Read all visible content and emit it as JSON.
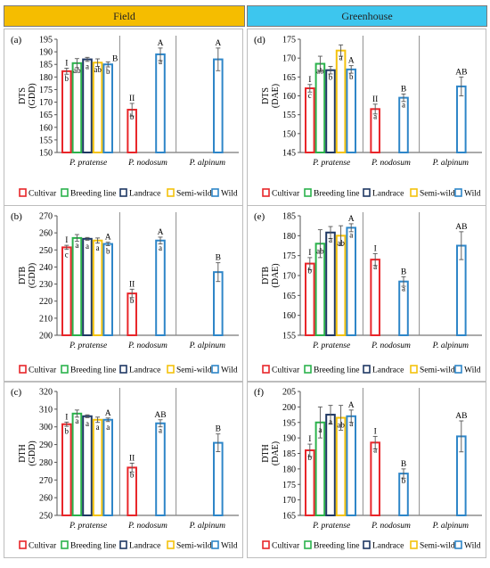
{
  "headers": {
    "field": "Field",
    "greenhouse": "Greenhouse"
  },
  "colors": {
    "Cultivar": "#e8262a",
    "Breeding line": "#2bb24c",
    "Landrace": "#1f3864",
    "Semi-wild": "#f4c20d",
    "Wild": "#2e86c8"
  },
  "legend": [
    "Cultivar",
    "Breeding line",
    "Landrace",
    "Semi-wild",
    "Wild"
  ],
  "species_labels": [
    "P. pratense",
    "P. nodosum",
    "P. alpinum"
  ],
  "chart_data": [
    {
      "id": "a",
      "panel_label": "(a)",
      "type": "bar",
      "ylabel": "DTS\n(GDD)",
      "ylim": [
        150,
        195
      ],
      "yticks": [
        150,
        155,
        160,
        165,
        170,
        175,
        180,
        185,
        190,
        195
      ],
      "groups": [
        {
          "species": "P. pratense",
          "group_letter": "I",
          "bars": [
            {
              "series": "Cultivar",
              "value": 182.3,
              "err": 1.2,
              "letter": "b"
            },
            {
              "series": "Breeding line",
              "value": 185.5,
              "err": 1.8,
              "letter": "ab"
            },
            {
              "series": "Landrace",
              "value": 187.0,
              "err": 0.8,
              "letter": "a"
            },
            {
              "series": "Semi-wild",
              "value": 185.7,
              "err": 1.5,
              "letter": "ab"
            },
            {
              "series": "Wild",
              "value": 185.0,
              "err": 1.0,
              "letter": "b"
            }
          ],
          "extra_letter": "B"
        },
        {
          "species": "P. nodosum",
          "group_letter": "II",
          "bars": [
            {
              "series": "Cultivar",
              "value": 167.0,
              "err": 2.5,
              "letter": "b"
            },
            {
              "series": "Wild",
              "value": 189.0,
              "err": 2.5,
              "letter": "a",
              "top_letter": "A"
            }
          ]
        },
        {
          "species": "P. alpinum",
          "bars": [
            {
              "series": "Wild",
              "value": 187.0,
              "err": 4.5,
              "top_letter": "A"
            }
          ]
        }
      ]
    },
    {
      "id": "d",
      "panel_label": "(d)",
      "type": "bar",
      "ylabel": "DTS\n(DAE)",
      "ylim": [
        145,
        175
      ],
      "yticks": [
        145,
        150,
        155,
        160,
        165,
        170,
        175
      ],
      "groups": [
        {
          "species": "P. pratense",
          "group_letter": "I",
          "bars": [
            {
              "series": "Cultivar",
              "value": 162.0,
              "err": 1.0,
              "letter": "c"
            },
            {
              "series": "Breeding line",
              "value": 168.5,
              "err": 2.0,
              "letter": "ab"
            },
            {
              "series": "Landrace",
              "value": 166.8,
              "err": 1.0,
              "letter": "b"
            },
            {
              "series": "Semi-wild",
              "value": 172.0,
              "err": 1.5,
              "letter": "a"
            },
            {
              "series": "Wild",
              "value": 167.0,
              "err": 1.0,
              "letter": "b",
              "top_letter": "A"
            }
          ]
        },
        {
          "species": "P. nodosum",
          "group_letter": "II",
          "bars": [
            {
              "series": "Cultivar",
              "value": 156.5,
              "err": 1.3,
              "letter": "a"
            },
            {
              "series": "Wild",
              "value": 159.5,
              "err": 1.0,
              "letter": "a",
              "top_letter": "B"
            }
          ]
        },
        {
          "species": "P. alpinum",
          "bars": [
            {
              "series": "Wild",
              "value": 162.5,
              "err": 2.5,
              "top_letter": "AB"
            }
          ]
        }
      ]
    },
    {
      "id": "b",
      "panel_label": "(b)",
      "type": "bar",
      "ylabel": "DTB\n(GDD)",
      "ylim": [
        200,
        270
      ],
      "yticks": [
        200,
        210,
        220,
        230,
        240,
        250,
        260,
        270
      ],
      "groups": [
        {
          "species": "P. pratense",
          "group_letter": "I",
          "bars": [
            {
              "series": "Cultivar",
              "value": 251.5,
              "err": 1.2,
              "letter": "c"
            },
            {
              "series": "Breeding line",
              "value": 257.0,
              "err": 2.0,
              "letter": "a"
            },
            {
              "series": "Landrace",
              "value": 256.5,
              "err": 0.8,
              "letter": "a"
            },
            {
              "series": "Semi-wild",
              "value": 255.5,
              "err": 1.5,
              "letter": "a"
            },
            {
              "series": "Wild",
              "value": 253.5,
              "err": 1.0,
              "letter": "b",
              "top_letter": "A"
            }
          ]
        },
        {
          "species": "P. nodosum",
          "group_letter": "II",
          "bars": [
            {
              "series": "Cultivar",
              "value": 224.5,
              "err": 2.5,
              "letter": "b"
            },
            {
              "series": "Wild",
              "value": 255.5,
              "err": 2.0,
              "letter": "a",
              "top_letter": "A"
            }
          ]
        },
        {
          "species": "P. alpinum",
          "bars": [
            {
              "series": "Wild",
              "value": 237.0,
              "err": 5.5,
              "top_letter": "B"
            }
          ]
        }
      ]
    },
    {
      "id": "e",
      "panel_label": "(e)",
      "type": "bar",
      "ylabel": "DTB\n(DAE)",
      "ylim": [
        155,
        185
      ],
      "yticks": [
        155,
        160,
        165,
        170,
        175,
        180,
        185
      ],
      "groups": [
        {
          "species": "P. pratense",
          "group_letter": "I",
          "bars": [
            {
              "series": "Cultivar",
              "value": 173.0,
              "err": 1.5,
              "letter": "b"
            },
            {
              "series": "Breeding line",
              "value": 178.0,
              "err": 3.5,
              "letter": "ab"
            },
            {
              "series": "Landrace",
              "value": 180.8,
              "err": 1.5,
              "letter": "a"
            },
            {
              "series": "Semi-wild",
              "value": 180.0,
              "err": 2.5,
              "letter": "ab"
            },
            {
              "series": "Wild",
              "value": 182.0,
              "err": 1.0,
              "letter": "a",
              "top_letter": "A"
            }
          ]
        },
        {
          "species": "P. nodosum",
          "group_letter": "I",
          "bars": [
            {
              "series": "Cultivar",
              "value": 174.0,
              "err": 1.5,
              "letter": "a"
            },
            {
              "series": "Wild",
              "value": 168.5,
              "err": 1.2,
              "letter": "a",
              "top_letter": "B"
            }
          ]
        },
        {
          "species": "P. alpinum",
          "bars": [
            {
              "series": "Wild",
              "value": 177.5,
              "err": 3.5,
              "top_letter": "AB"
            }
          ]
        }
      ]
    },
    {
      "id": "c",
      "panel_label": "(c)",
      "type": "bar",
      "ylabel": "DTH\n(GDD)",
      "ylim": [
        250,
        320
      ],
      "yticks": [
        250,
        260,
        270,
        280,
        290,
        300,
        310,
        320
      ],
      "groups": [
        {
          "species": "P. pratense",
          "group_letter": "I",
          "bars": [
            {
              "series": "Cultivar",
              "value": 301.5,
              "err": 1.2,
              "letter": "b"
            },
            {
              "series": "Breeding line",
              "value": 307.5,
              "err": 2.0,
              "letter": "a"
            },
            {
              "series": "Landrace",
              "value": 306.0,
              "err": 0.8,
              "letter": "a"
            },
            {
              "series": "Semi-wild",
              "value": 304.0,
              "err": 1.5,
              "letter": "a"
            },
            {
              "series": "Wild",
              "value": 304.0,
              "err": 1.0,
              "letter": "a",
              "top_letter": "A"
            }
          ]
        },
        {
          "species": "P. nodosum",
          "group_letter": "II",
          "bars": [
            {
              "series": "Cultivar",
              "value": 277.0,
              "err": 2.5,
              "letter": "b"
            },
            {
              "series": "Wild",
              "value": 302.0,
              "err": 2.0,
              "letter": "a",
              "top_letter": "AB"
            }
          ]
        },
        {
          "species": "P. alpinum",
          "bars": [
            {
              "series": "Wild",
              "value": 291.0,
              "err": 5.0,
              "top_letter": "B"
            }
          ]
        }
      ]
    },
    {
      "id": "f",
      "panel_label": "(f)",
      "type": "bar",
      "ylabel": "DTH\n(DAE)",
      "ylim": [
        165,
        205
      ],
      "yticks": [
        165,
        170,
        175,
        180,
        185,
        190,
        195,
        200,
        205
      ],
      "groups": [
        {
          "species": "P. pratense",
          "group_letter": "I",
          "bars": [
            {
              "series": "Cultivar",
              "value": 186.0,
              "err": 2.0,
              "letter": "b"
            },
            {
              "series": "Breeding line",
              "value": 195.0,
              "err": 5.0,
              "letter": "a"
            },
            {
              "series": "Landrace",
              "value": 197.5,
              "err": 3.0,
              "letter": "a"
            },
            {
              "series": "Semi-wild",
              "value": 196.5,
              "err": 4.0,
              "letter": "ab"
            },
            {
              "series": "Wild",
              "value": 197.0,
              "err": 2.0,
              "letter": "a",
              "top_letter": "A"
            }
          ]
        },
        {
          "species": "P. nodosum",
          "group_letter": "I",
          "bars": [
            {
              "series": "Cultivar",
              "value": 188.5,
              "err": 2.0,
              "letter": "a"
            },
            {
              "series": "Wild",
              "value": 178.5,
              "err": 1.5,
              "letter": "b",
              "top_letter": "B"
            }
          ]
        },
        {
          "species": "P. alpinum",
          "bars": [
            {
              "series": "Wild",
              "value": 190.5,
              "err": 5.0,
              "top_letter": "AB"
            }
          ]
        }
      ]
    }
  ]
}
